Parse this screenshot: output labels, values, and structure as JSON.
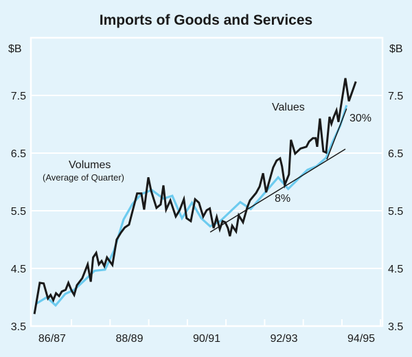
{
  "chart_data": {
    "type": "line",
    "title": "Imports of Goods and Services",
    "ylabel_left": "$B",
    "ylabel_right": "$B",
    "ylim": [
      3.5,
      8.5
    ],
    "yticks": [
      3.5,
      4.5,
      5.5,
      6.5,
      7.5
    ],
    "ytick_labels": [
      "3.5",
      "4.5",
      "5.5",
      "6.5",
      "7.5"
    ],
    "xlim": [
      1986.45,
      1995.55
    ],
    "xtick_labels": [
      {
        "label": "86/87",
        "year": 1987.0
      },
      {
        "label": "88/89",
        "year": 1989.0
      },
      {
        "label": "90/91",
        "year": 1991.0
      },
      {
        "label": "92/93",
        "year": 1993.0
      },
      {
        "label": "94/95",
        "year": 1995.0
      }
    ],
    "grid": "horizontal",
    "colors": {
      "values": "#1a1a1a",
      "volumes": "#6ccbef",
      "background": "#e3f3fb",
      "grid": "#ffffff"
    },
    "series": [
      {
        "name": "Values",
        "x": [
          1986.54,
          1986.68,
          1986.78,
          1986.89,
          1986.96,
          1987.03,
          1987.1,
          1987.18,
          1987.25,
          1987.35,
          1987.42,
          1987.5,
          1987.57,
          1987.64,
          1987.78,
          1987.92,
          1988.0,
          1988.06,
          1988.14,
          1988.21,
          1988.28,
          1988.35,
          1988.42,
          1988.56,
          1988.67,
          1988.78,
          1988.88,
          1988.99,
          1989.2,
          1989.31,
          1989.38,
          1989.49,
          1989.56,
          1989.7,
          1989.81,
          1989.88,
          1989.95,
          1990.06,
          1990.2,
          1990.3,
          1990.41,
          1990.48,
          1990.59,
          1990.7,
          1990.8,
          1990.91,
          1991.0,
          1991.08,
          1991.18,
          1991.26,
          1991.34,
          1991.41,
          1991.48,
          1991.55,
          1991.6,
          1991.66,
          1991.76,
          1991.83,
          1991.94,
          1992.05,
          1992.12,
          1992.28,
          1992.37,
          1992.46,
          1992.54,
          1992.72,
          1992.81,
          1992.9,
          1992.95,
          1993.02,
          1993.13,
          1993.18,
          1993.29,
          1993.43,
          1993.58,
          1993.65,
          1993.75,
          1993.82,
          1993.86,
          1993.93,
          1994.02,
          1994.09,
          1994.18,
          1994.23,
          1994.29,
          1994.36,
          1994.41,
          1994.59,
          1994.68,
          1994.86
        ],
        "values": [
          3.71,
          4.25,
          4.24,
          3.98,
          4.04,
          3.95,
          4.07,
          4.02,
          4.1,
          4.13,
          4.25,
          4.12,
          4.04,
          4.21,
          4.33,
          4.57,
          4.27,
          4.69,
          4.77,
          4.57,
          4.63,
          4.54,
          4.69,
          4.56,
          5.0,
          5.12,
          5.21,
          5.26,
          5.8,
          5.8,
          5.52,
          6.08,
          5.85,
          5.55,
          5.61,
          5.94,
          5.52,
          5.68,
          5.4,
          5.51,
          5.7,
          5.37,
          5.32,
          5.7,
          5.64,
          5.4,
          5.51,
          5.54,
          5.2,
          5.39,
          5.18,
          5.32,
          5.3,
          5.2,
          5.06,
          5.24,
          5.14,
          5.42,
          5.3,
          5.56,
          5.68,
          5.81,
          5.92,
          6.15,
          5.82,
          6.25,
          6.37,
          6.41,
          6.27,
          5.95,
          6.13,
          6.73,
          6.49,
          6.58,
          6.61,
          6.7,
          6.76,
          6.76,
          6.61,
          7.1,
          6.53,
          6.51,
          7.13,
          7.01,
          7.13,
          7.24,
          7.04,
          7.8,
          7.4,
          7.74
        ]
      },
      {
        "name": "Volumes (Average of Quarter)",
        "x": [
          1986.59,
          1986.86,
          1987.09,
          1987.34,
          1987.57,
          1987.8,
          1988.1,
          1988.37,
          1988.6,
          1988.85,
          1989.08,
          1989.31,
          1989.58,
          1989.88,
          1990.11,
          1990.36,
          1990.62,
          1990.86,
          1991.09,
          1991.35,
          1991.87,
          1992.14,
          1992.49,
          1992.85,
          1993.11,
          1993.38,
          1993.61,
          1993.84,
          1994.09,
          1994.27,
          1994.46,
          1994.62
        ],
        "values": [
          3.89,
          4.0,
          3.86,
          4.06,
          4.13,
          4.27,
          4.46,
          4.48,
          4.81,
          5.35,
          5.62,
          5.79,
          5.86,
          5.71,
          5.76,
          5.37,
          5.64,
          5.37,
          5.23,
          5.32,
          5.65,
          5.53,
          5.8,
          6.08,
          5.88,
          6.06,
          6.21,
          6.27,
          6.42,
          6.71,
          6.98,
          7.33
        ]
      }
    ],
    "trend_lines": [
      {
        "label": "8%",
        "x": [
          1991.09,
          1994.59
        ],
        "values": [
          5.13,
          6.57
        ]
      },
      {
        "label": "30%",
        "x": [
          1994.11,
          1994.62
        ],
        "values": [
          6.39,
          7.27
        ]
      }
    ],
    "annotations": {
      "values": "Values",
      "volumes": "Volumes",
      "volumes_sub": "(Average of Quarter)",
      "trend8": "8%",
      "trend30": "30%"
    }
  }
}
